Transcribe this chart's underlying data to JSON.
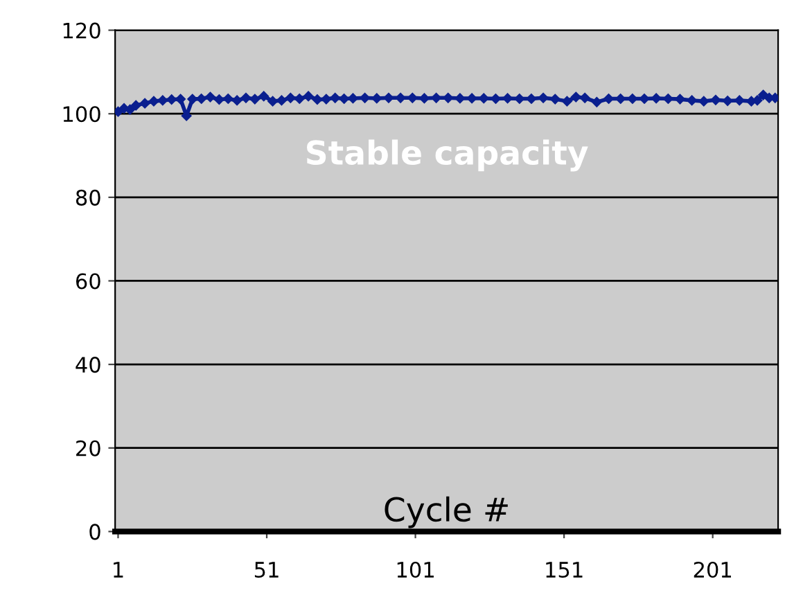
{
  "chart_data": {
    "type": "line",
    "xlabel": "Cycle #",
    "annotations": [
      "Stable capacity"
    ],
    "x": [
      1,
      3,
      5,
      7,
      10,
      13,
      16,
      19,
      22,
      24,
      26,
      29,
      32,
      35,
      38,
      41,
      44,
      47,
      50,
      53,
      56,
      59,
      62,
      65,
      68,
      71,
      74,
      77,
      80,
      84,
      88,
      92,
      96,
      100,
      104,
      108,
      112,
      116,
      120,
      124,
      128,
      132,
      136,
      140,
      144,
      148,
      152,
      155,
      158,
      162,
      166,
      170,
      174,
      178,
      182,
      186,
      190,
      194,
      198,
      202,
      206,
      210,
      214,
      216,
      218,
      220,
      222
    ],
    "series": [
      {
        "color": "#0a1f8f",
        "values": [
          100.5,
          101.3,
          101.0,
          102.0,
          102.5,
          103.0,
          103.2,
          103.4,
          103.5,
          99.5,
          103.5,
          103.6,
          104.0,
          103.4,
          103.6,
          103.2,
          103.8,
          103.5,
          104.2,
          103.0,
          103.2,
          103.8,
          103.6,
          104.2,
          103.4,
          103.5,
          103.8,
          103.6,
          103.7,
          103.8,
          103.7,
          103.8,
          103.8,
          103.8,
          103.7,
          103.8,
          103.8,
          103.7,
          103.7,
          103.7,
          103.6,
          103.7,
          103.6,
          103.6,
          103.8,
          103.5,
          103.0,
          104.0,
          103.8,
          102.8,
          103.6,
          103.6,
          103.6,
          103.6,
          103.7,
          103.6,
          103.5,
          103.2,
          103.0,
          103.3,
          103.1,
          103.2,
          103.0,
          103.2,
          104.5,
          103.8,
          103.8
        ]
      }
    ],
    "xlim": [
      0,
      223
    ],
    "xticks": [
      1,
      51,
      101,
      151,
      201
    ],
    "ylim": [
      0,
      120
    ],
    "yticks": [
      0,
      20,
      40,
      60,
      80,
      100,
      120
    ],
    "grid": "y",
    "marker": "diamond",
    "line_style": "solid"
  }
}
